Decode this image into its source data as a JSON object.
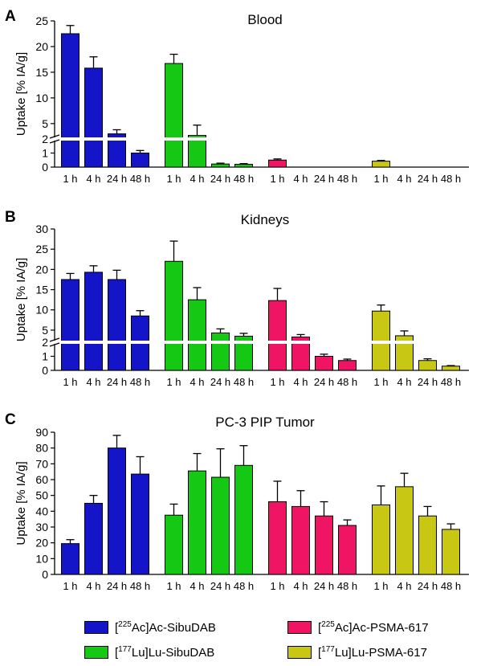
{
  "figure": {
    "series": [
      {
        "key": "ac_sibu",
        "pre": "[",
        "iso": "225",
        "post": "Ac]Ac-SibuDAB",
        "color": "#1414c8"
      },
      {
        "key": "lu_sibu",
        "pre": "[",
        "iso": "177",
        "post": "Lu]Lu-SibuDAB",
        "color": "#14c814"
      },
      {
        "key": "ac_psma",
        "pre": "[",
        "iso": "225",
        "post": "Ac]Ac-PSMA-617",
        "color": "#f01464"
      },
      {
        "key": "lu_psma",
        "pre": "[",
        "iso": "177",
        "post": "Lu]Lu-PSMA-617",
        "color": "#c8c814"
      }
    ],
    "ylabel": "Uptake [% IA/g]"
  },
  "chart_data": [
    {
      "panel": "A",
      "type": "bar",
      "title": "Blood",
      "ylabel": "Uptake [% IA/g]",
      "broken_axis": true,
      "lower_range": [
        0,
        2
      ],
      "upper_range": [
        2,
        25
      ],
      "lower_ticks": [
        "0",
        "1",
        "2"
      ],
      "upper_ticks": [
        "5",
        "10",
        "15",
        "20",
        "25"
      ],
      "upper_tick_values": [
        5,
        10,
        15,
        20,
        25
      ],
      "categories": [
        "1 h",
        "4 h",
        "24 h",
        "48 h"
      ],
      "series": [
        {
          "name": "[225Ac]Ac-SibuDAB",
          "values": [
            22.5,
            15.8,
            3.0,
            1.0
          ],
          "errors": [
            1.6,
            2.2,
            0.8,
            0.18
          ]
        },
        {
          "name": "[177Lu]Lu-SibuDAB",
          "values": [
            16.7,
            2.7,
            0.22,
            0.2
          ],
          "errors": [
            1.8,
            2.0,
            0.06,
            0.05
          ]
        },
        {
          "name": "[225Ac]Ac-PSMA-617",
          "values": [
            0.5,
            0.0,
            0.0,
            0.0
          ],
          "errors": [
            0.08,
            0.0,
            0.0,
            0.0
          ]
        },
        {
          "name": "[177Lu]Lu-PSMA-617",
          "values": [
            0.42,
            0.0,
            0.0,
            0.0
          ],
          "errors": [
            0.05,
            0.0,
            0.0,
            0.0
          ]
        }
      ]
    },
    {
      "panel": "B",
      "type": "bar",
      "title": "Kidneys",
      "ylabel": "Uptake [% IA/g]",
      "broken_axis": true,
      "lower_range": [
        0,
        2
      ],
      "upper_range": [
        2,
        30
      ],
      "lower_ticks": [
        "0",
        "1",
        "2"
      ],
      "upper_ticks": [
        "5",
        "10",
        "15",
        "20",
        "25",
        "30"
      ],
      "upper_tick_values": [
        5,
        10,
        15,
        20,
        25,
        30
      ],
      "categories": [
        "1 h",
        "4 h",
        "24 h",
        "48 h"
      ],
      "series": [
        {
          "name": "[225Ac]Ac-SibuDAB",
          "values": [
            17.5,
            19.3,
            17.5,
            8.5
          ],
          "errors": [
            1.5,
            1.6,
            2.3,
            1.3
          ]
        },
        {
          "name": "[177Lu]Lu-SibuDAB",
          "values": [
            22.0,
            12.5,
            4.3,
            3.5
          ],
          "errors": [
            5.0,
            3.0,
            1.0,
            0.7
          ]
        },
        {
          "name": "[225Ac]Ac-PSMA-617",
          "values": [
            12.3,
            3.3,
            1.0,
            0.7
          ],
          "errors": [
            3.0,
            0.6,
            0.15,
            0.1
          ]
        },
        {
          "name": "[177Lu]Lu-PSMA-617",
          "values": [
            9.7,
            3.6,
            0.7,
            0.3
          ],
          "errors": [
            1.5,
            1.2,
            0.12,
            0.04
          ]
        }
      ]
    },
    {
      "panel": "C",
      "type": "bar",
      "title": "PC-3 PIP Tumor",
      "ylabel": "Uptake [% IA/g]",
      "broken_axis": false,
      "ylim": [
        0,
        90
      ],
      "ticks": [
        "0",
        "10",
        "20",
        "30",
        "40",
        "50",
        "60",
        "70",
        "80",
        "90"
      ],
      "tick_values": [
        0,
        10,
        20,
        30,
        40,
        50,
        60,
        70,
        80,
        90
      ],
      "categories": [
        "1 h",
        "4 h",
        "24 h",
        "48 h"
      ],
      "series": [
        {
          "name": "[225Ac]Ac-SibuDAB",
          "values": [
            19.5,
            45.0,
            80.0,
            63.5
          ],
          "errors": [
            2.5,
            5.0,
            8.0,
            11.0
          ]
        },
        {
          "name": "[177Lu]Lu-SibuDAB",
          "values": [
            37.5,
            65.5,
            61.5,
            69.0
          ],
          "errors": [
            7.0,
            11.0,
            18.0,
            12.5
          ]
        },
        {
          "name": "[225Ac]Ac-PSMA-617",
          "values": [
            46.0,
            43.0,
            37.0,
            31.0
          ],
          "errors": [
            13.0,
            10.0,
            9.0,
            3.5
          ]
        },
        {
          "name": "[177Lu]Lu-PSMA-617",
          "values": [
            44.0,
            55.5,
            37.0,
            28.5
          ],
          "errors": [
            12.0,
            8.5,
            6.0,
            3.5
          ]
        }
      ]
    }
  ]
}
